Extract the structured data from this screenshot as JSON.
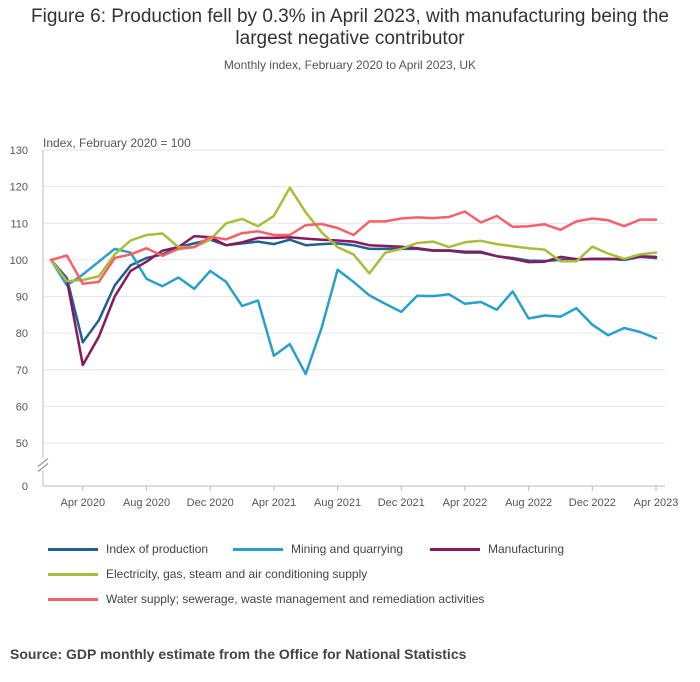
{
  "title": "Figure 6: Production fell by 0.3% in April 2023, with manufacturing being the largest negative contributor",
  "subtitle": "Monthly index, February 2020 to April 2023, UK",
  "source": "Source: GDP monthly estimate from the Office for National Statistics",
  "chart_data": {
    "type": "line",
    "ylabel": "Index, February 2020 = 100",
    "ylim": [
      50,
      130
    ],
    "y_ticks": [
      "130",
      "120",
      "110",
      "100",
      "90",
      "80",
      "70",
      "60",
      "50",
      "0"
    ],
    "axis_break": true,
    "x_tick_labels": [
      "Apr 2020",
      "Aug 2020",
      "Dec 2020",
      "Apr 2021",
      "Aug 2021",
      "Dec 2021",
      "Apr 2022",
      "Aug 2022",
      "Dec 2022",
      "Apr 2023"
    ],
    "x_tick_index": [
      2,
      6,
      10,
      14,
      18,
      22,
      26,
      30,
      34,
      38
    ],
    "x": [
      "Feb 2020",
      "Mar 2020",
      "Apr 2020",
      "May 2020",
      "Jun 2020",
      "Jul 2020",
      "Aug 2020",
      "Sep 2020",
      "Oct 2020",
      "Nov 2020",
      "Dec 2020",
      "Jan 2021",
      "Feb 2021",
      "Mar 2021",
      "Apr 2021",
      "May 2021",
      "Jun 2021",
      "Jul 2021",
      "Aug 2021",
      "Sep 2021",
      "Oct 2021",
      "Nov 2021",
      "Dec 2021",
      "Jan 2022",
      "Feb 2022",
      "Mar 2022",
      "Apr 2022",
      "May 2022",
      "Jun 2022",
      "Jul 2022",
      "Aug 2022",
      "Sep 2022",
      "Oct 2022",
      "Nov 2022",
      "Dec 2022",
      "Jan 2023",
      "Feb 2023",
      "Mar 2023",
      "Apr 2023"
    ],
    "grid": true,
    "legend_position": "bottom",
    "series": [
      {
        "name": "Index of production",
        "color": "#206095",
        "values": [
          100.0,
          95.0,
          77.5,
          83.5,
          93.0,
          98.5,
          100.5,
          101.5,
          103.5,
          104.5,
          105.5,
          104.0,
          104.5,
          105.0,
          104.3,
          105.5,
          104.0,
          104.3,
          104.5,
          104.0,
          103.0,
          103.0,
          103.0,
          103.0,
          102.5,
          102.5,
          102.0,
          102.0,
          101.0,
          100.5,
          99.8,
          99.7,
          100.0,
          100.0,
          100.3,
          100.3,
          100.0,
          100.8,
          100.5
        ]
      },
      {
        "name": "Mining and quarrying",
        "color": "#27A0CC",
        "values": [
          100.0,
          93.0,
          96.0,
          99.5,
          103.0,
          102.0,
          94.8,
          92.8,
          95.2,
          92.1,
          97.0,
          94.0,
          87.4,
          88.9,
          73.8,
          77.0,
          68.8,
          81.5,
          97.3,
          94.0,
          90.3,
          88.0,
          85.8,
          90.2,
          90.1,
          90.6,
          88.0,
          88.5,
          86.4,
          91.4,
          84.0,
          84.8,
          84.5,
          86.8,
          82.3,
          79.4,
          81.4,
          80.3,
          78.6
        ]
      },
      {
        "name": "Manufacturing",
        "color": "#871A5B",
        "values": [
          100.0,
          94.5,
          71.3,
          79.0,
          90.0,
          97.0,
          99.5,
          102.5,
          103.5,
          106.5,
          106.2,
          104.0,
          104.8,
          106.0,
          106.0,
          106.2,
          105.8,
          105.5,
          105.3,
          105.0,
          104.0,
          103.8,
          103.6,
          103.2,
          102.6,
          102.6,
          102.2,
          102.2,
          101.0,
          100.3,
          99.4,
          99.5,
          100.8,
          100.2,
          100.2,
          100.2,
          100.3,
          101.0,
          100.8
        ]
      },
      {
        "name": "Electricity, gas, steam and air conditioning supply",
        "color": "#A8BD3A",
        "values": [
          100.0,
          94.2,
          94.5,
          95.5,
          101.5,
          105.3,
          106.8,
          107.2,
          103.5,
          103.5,
          105.5,
          110.0,
          111.2,
          109.2,
          112.0,
          119.7,
          113.0,
          107.5,
          103.5,
          101.5,
          96.3,
          102.0,
          103.0,
          104.6,
          105.0,
          103.5,
          104.8,
          105.2,
          104.3,
          103.7,
          103.2,
          102.8,
          99.6,
          99.6,
          103.6,
          101.7,
          100.3,
          101.5,
          102.0
        ]
      },
      {
        "name": "Water supply; sewerage, waste management and remediation activities",
        "color": "#F66068",
        "values": [
          100.0,
          101.2,
          93.5,
          94.0,
          100.5,
          101.5,
          103.2,
          101.1,
          103.0,
          103.5,
          106.3,
          105.6,
          107.3,
          107.8,
          106.8,
          106.8,
          109.5,
          109.8,
          108.7,
          106.8,
          110.5,
          110.5,
          111.3,
          111.6,
          111.4,
          111.7,
          113.2,
          110.2,
          112.0,
          109.0,
          109.2,
          109.7,
          108.2,
          110.5,
          111.3,
          110.8,
          109.2,
          111.0,
          111.0
        ]
      }
    ]
  }
}
